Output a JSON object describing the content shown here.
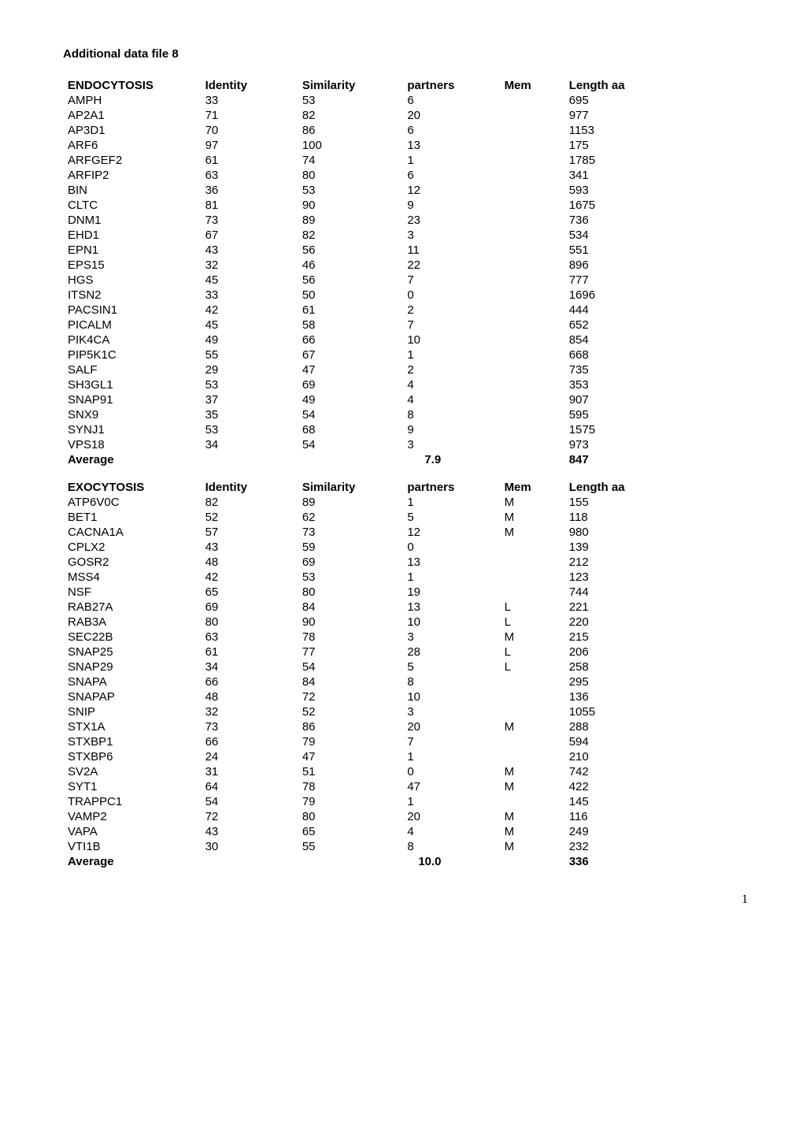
{
  "doc_title": "Additional data file 8",
  "page_number": "1",
  "tables": [
    {
      "headers": {
        "name": "ENDOCYTOSIS",
        "identity": "Identity",
        "similarity": "Similarity",
        "partners": "partners",
        "mem": "Mem",
        "length": "Length  aa"
      },
      "rows": [
        {
          "name": "AMPH",
          "identity": "33",
          "similarity": "53",
          "partners": "6",
          "mem": "",
          "length": "695"
        },
        {
          "name": "AP2A1",
          "identity": "71",
          "similarity": "82",
          "partners": "20",
          "mem": "",
          "length": "977"
        },
        {
          "name": "AP3D1",
          "identity": "70",
          "similarity": "86",
          "partners": "6",
          "mem": "",
          "length": "1153"
        },
        {
          "name": "ARF6",
          "identity": "97",
          "similarity": "100",
          "partners": "13",
          "mem": "",
          "length": "175"
        },
        {
          "name": "ARFGEF2",
          "identity": "61",
          "similarity": "74",
          "partners": "1",
          "mem": "",
          "length": "1785"
        },
        {
          "name": "ARFIP2",
          "identity": "63",
          "similarity": "80",
          "partners": "6",
          "mem": "",
          "length": "341"
        },
        {
          "name": "BIN",
          "identity": "36",
          "similarity": "53",
          "partners": "12",
          "mem": "",
          "length": "593"
        },
        {
          "name": "CLTC",
          "identity": "81",
          "similarity": "90",
          "partners": "9",
          "mem": "",
          "length": "1675"
        },
        {
          "name": "DNM1",
          "identity": "73",
          "similarity": "89",
          "partners": "23",
          "mem": "",
          "length": "736"
        },
        {
          "name": "EHD1",
          "identity": "67",
          "similarity": "82",
          "partners": "3",
          "mem": "",
          "length": "534"
        },
        {
          "name": "EPN1",
          "identity": "43",
          "similarity": "56",
          "partners": "11",
          "mem": "",
          "length": "551"
        },
        {
          "name": "EPS15",
          "identity": "32",
          "similarity": "46",
          "partners": "22",
          "mem": "",
          "length": "896"
        },
        {
          "name": "HGS",
          "identity": "45",
          "similarity": "56",
          "partners": "7",
          "mem": "",
          "length": "777"
        },
        {
          "name": "ITSN2",
          "identity": "33",
          "similarity": "50",
          "partners": "0",
          "mem": "",
          "length": "1696"
        },
        {
          "name": "PACSIN1",
          "identity": "42",
          "similarity": "61",
          "partners": "2",
          "mem": "",
          "length": "444"
        },
        {
          "name": "PICALM",
          "identity": "45",
          "similarity": "58",
          "partners": "7",
          "mem": "",
          "length": "652"
        },
        {
          "name": "PIK4CA",
          "identity": "49",
          "similarity": "66",
          "partners": "10",
          "mem": "",
          "length": "854"
        },
        {
          "name": "PIP5K1C",
          "identity": "55",
          "similarity": "67",
          "partners": "1",
          "mem": "",
          "length": "668"
        },
        {
          "name": "SALF",
          "identity": "29",
          "similarity": "47",
          "partners": "2",
          "mem": "",
          "length": "735"
        },
        {
          "name": "SH3GL1",
          "identity": "53",
          "similarity": "69",
          "partners": "4",
          "mem": "",
          "length": "353"
        },
        {
          "name": "SNAP91",
          "identity": "37",
          "similarity": "49",
          "partners": "4",
          "mem": "",
          "length": "907"
        },
        {
          "name": "SNX9",
          "identity": "35",
          "similarity": "54",
          "partners": "8",
          "mem": "",
          "length": "595"
        },
        {
          "name": "SYNJ1",
          "identity": "53",
          "similarity": "68",
          "partners": "9",
          "mem": "",
          "length": "1575"
        },
        {
          "name": "VPS18",
          "identity": "34",
          "similarity": "54",
          "partners": "3",
          "mem": "",
          "length": "973"
        }
      ],
      "average": {
        "label": "Average",
        "identity": "",
        "similarity": "",
        "partners": "7.9",
        "mem": "",
        "length": "847"
      }
    },
    {
      "headers": {
        "name": "EXOCYTOSIS",
        "identity": "Identity",
        "similarity": "Similarity",
        "partners": "partners",
        "mem": "Mem",
        "length": "Length  aa"
      },
      "rows": [
        {
          "name": "ATP6V0C",
          "identity": "82",
          "similarity": "89",
          "partners": "1",
          "mem": "M",
          "length": "155"
        },
        {
          "name": "BET1",
          "identity": "52",
          "similarity": "62",
          "partners": "5",
          "mem": "M",
          "length": "118"
        },
        {
          "name": "CACNA1A",
          "identity": "57",
          "similarity": "73",
          "partners": "12",
          "mem": "M",
          "length": "980"
        },
        {
          "name": "CPLX2",
          "identity": "43",
          "similarity": "59",
          "partners": "0",
          "mem": "",
          "length": "139"
        },
        {
          "name": "GOSR2",
          "identity": "48",
          "similarity": "69",
          "partners": "13",
          "mem": "",
          "length": "212"
        },
        {
          "name": "MSS4",
          "identity": "42",
          "similarity": "53",
          "partners": "1",
          "mem": "",
          "length": "123"
        },
        {
          "name": "NSF",
          "identity": "65",
          "similarity": "80",
          "partners": "19",
          "mem": "",
          "length": "744"
        },
        {
          "name": "RAB27A",
          "identity": "69",
          "similarity": "84",
          "partners": "13",
          "mem": "L",
          "length": "221"
        },
        {
          "name": "RAB3A",
          "identity": "80",
          "similarity": "90",
          "partners": "10",
          "mem": "L",
          "length": "220"
        },
        {
          "name": "SEC22B",
          "identity": "63",
          "similarity": "78",
          "partners": "3",
          "mem": "M",
          "length": "215"
        },
        {
          "name": "SNAP25",
          "identity": "61",
          "similarity": "77",
          "partners": "28",
          "mem": "L",
          "length": "206"
        },
        {
          "name": "SNAP29",
          "identity": "34",
          "similarity": "54",
          "partners": "5",
          "mem": "L",
          "length": "258"
        },
        {
          "name": "SNAPA",
          "identity": "66",
          "similarity": "84",
          "partners": "8",
          "mem": "",
          "length": "295"
        },
        {
          "name": "SNAPAP",
          "identity": "48",
          "similarity": "72",
          "partners": "10",
          "mem": "",
          "length": "136"
        },
        {
          "name": "SNIP",
          "identity": "32",
          "similarity": "52",
          "partners": "3",
          "mem": "",
          "length": "1055"
        },
        {
          "name": "STX1A",
          "identity": "73",
          "similarity": "86",
          "partners": "20",
          "mem": "M",
          "length": "288"
        },
        {
          "name": "STXBP1",
          "identity": "66",
          "similarity": "79",
          "partners": "7",
          "mem": "",
          "length": "594"
        },
        {
          "name": "STXBP6",
          "identity": "24",
          "similarity": "47",
          "partners": "1",
          "mem": "",
          "length": "210"
        },
        {
          "name": "SV2A",
          "identity": "31",
          "similarity": "51",
          "partners": "0",
          "mem": "M",
          "length": "742"
        },
        {
          "name": "SYT1",
          "identity": "64",
          "similarity": "78",
          "partners": "47",
          "mem": "M",
          "length": "422"
        },
        {
          "name": "TRAPPC1",
          "identity": "54",
          "similarity": "79",
          "partners": "1",
          "mem": "",
          "length": "145"
        },
        {
          "name": "VAMP2",
          "identity": "72",
          "similarity": "80",
          "partners": "20",
          "mem": "M",
          "length": "116"
        },
        {
          "name": "VAPA",
          "identity": "43",
          "similarity": "65",
          "partners": "4",
          "mem": "M",
          "length": "249"
        },
        {
          "name": "VTI1B",
          "identity": "30",
          "similarity": "55",
          "partners": "8",
          "mem": "M",
          "length": "232"
        }
      ],
      "average": {
        "label": "Average",
        "identity": "",
        "similarity": "",
        "partners": "10.0",
        "mem": "",
        "length": "336"
      }
    }
  ]
}
